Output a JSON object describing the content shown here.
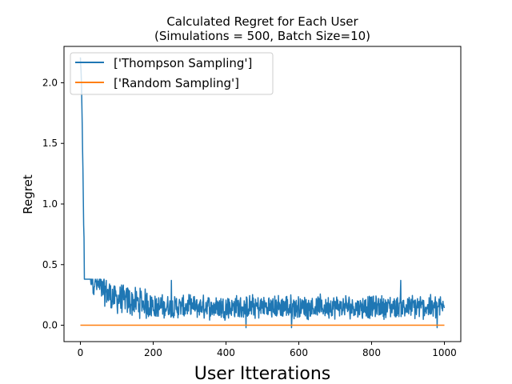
{
  "chart_data": {
    "type": "line",
    "title": "Calculated Regret for Each User",
    "subtitle": "(Simulations = 500, Batch Size=10)",
    "xlabel": "User Itterations",
    "ylabel": "Regret",
    "xlim": [
      -45,
      1045
    ],
    "ylim": [
      -0.135,
      2.3
    ],
    "xticks": [
      0,
      200,
      400,
      600,
      800,
      1000
    ],
    "xtick_labels": [
      "0",
      "200",
      "400",
      "600",
      "800",
      "1000"
    ],
    "yticks": [
      0.0,
      0.5,
      1.0,
      1.5,
      2.0
    ],
    "ytick_labels": [
      "0.0",
      "0.5",
      "1.0",
      "1.5",
      "2.0"
    ],
    "grid": false,
    "legend_position": "top-left",
    "series": [
      {
        "name": "['Thompson Sampling']",
        "color": "#1f77b4",
        "n_points": 1000,
        "x_start": 0,
        "x_end": 1000,
        "initial_value": 2.2,
        "decay_to": 0.55,
        "decay_end_x": 10,
        "early_values": [
          [
            10,
            0.55
          ],
          [
            14,
            0.7
          ],
          [
            18,
            0.5
          ],
          [
            25,
            0.45
          ],
          [
            35,
            0.38
          ],
          [
            50,
            0.32
          ],
          [
            70,
            0.27
          ],
          [
            100,
            0.22
          ],
          [
            150,
            0.19
          ],
          [
            200,
            0.17
          ]
        ],
        "steady_mean": 0.15,
        "steady_range": [
          -0.03,
          0.38
        ],
        "notable_points": [
          [
            10,
            0.72
          ],
          [
            250,
            0.37
          ],
          [
            455,
            -0.02
          ],
          [
            580,
            -0.02
          ],
          [
            880,
            0.37
          ],
          [
            980,
            -0.02
          ]
        ]
      },
      {
        "name": "['Random Sampling']",
        "color": "#ff7f0e",
        "x": [
          0,
          1000
        ],
        "y": [
          0.0,
          0.0
        ]
      }
    ]
  }
}
